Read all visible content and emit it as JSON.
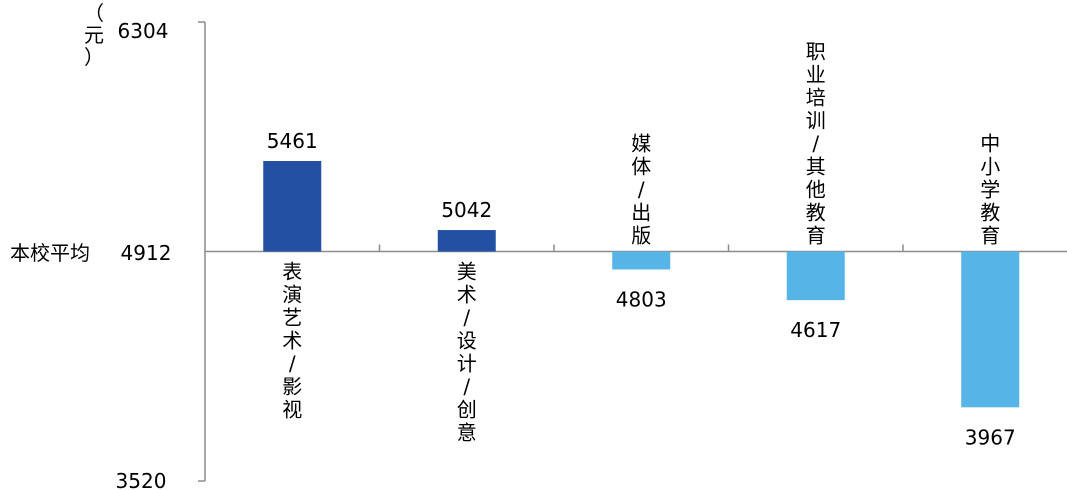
{
  "chart_data": {
    "type": "bar",
    "ylabel": "（元）",
    "ylim": [
      3520,
      6304
    ],
    "baseline": {
      "label": "本校平均",
      "value": 4912
    },
    "tick_labels": [
      "6304",
      "4912",
      "3520"
    ],
    "categories": [
      "表演艺术/影视",
      "美术/设计/创意",
      "媒体/出版",
      "职业培训/其他教育",
      "中小学教育"
    ],
    "values": [
      5461,
      5042,
      4803,
      4617,
      3967
    ],
    "colors": {
      "above": "#2350a3",
      "below": "#56b4e6",
      "axis": "#8c8c8c"
    }
  }
}
